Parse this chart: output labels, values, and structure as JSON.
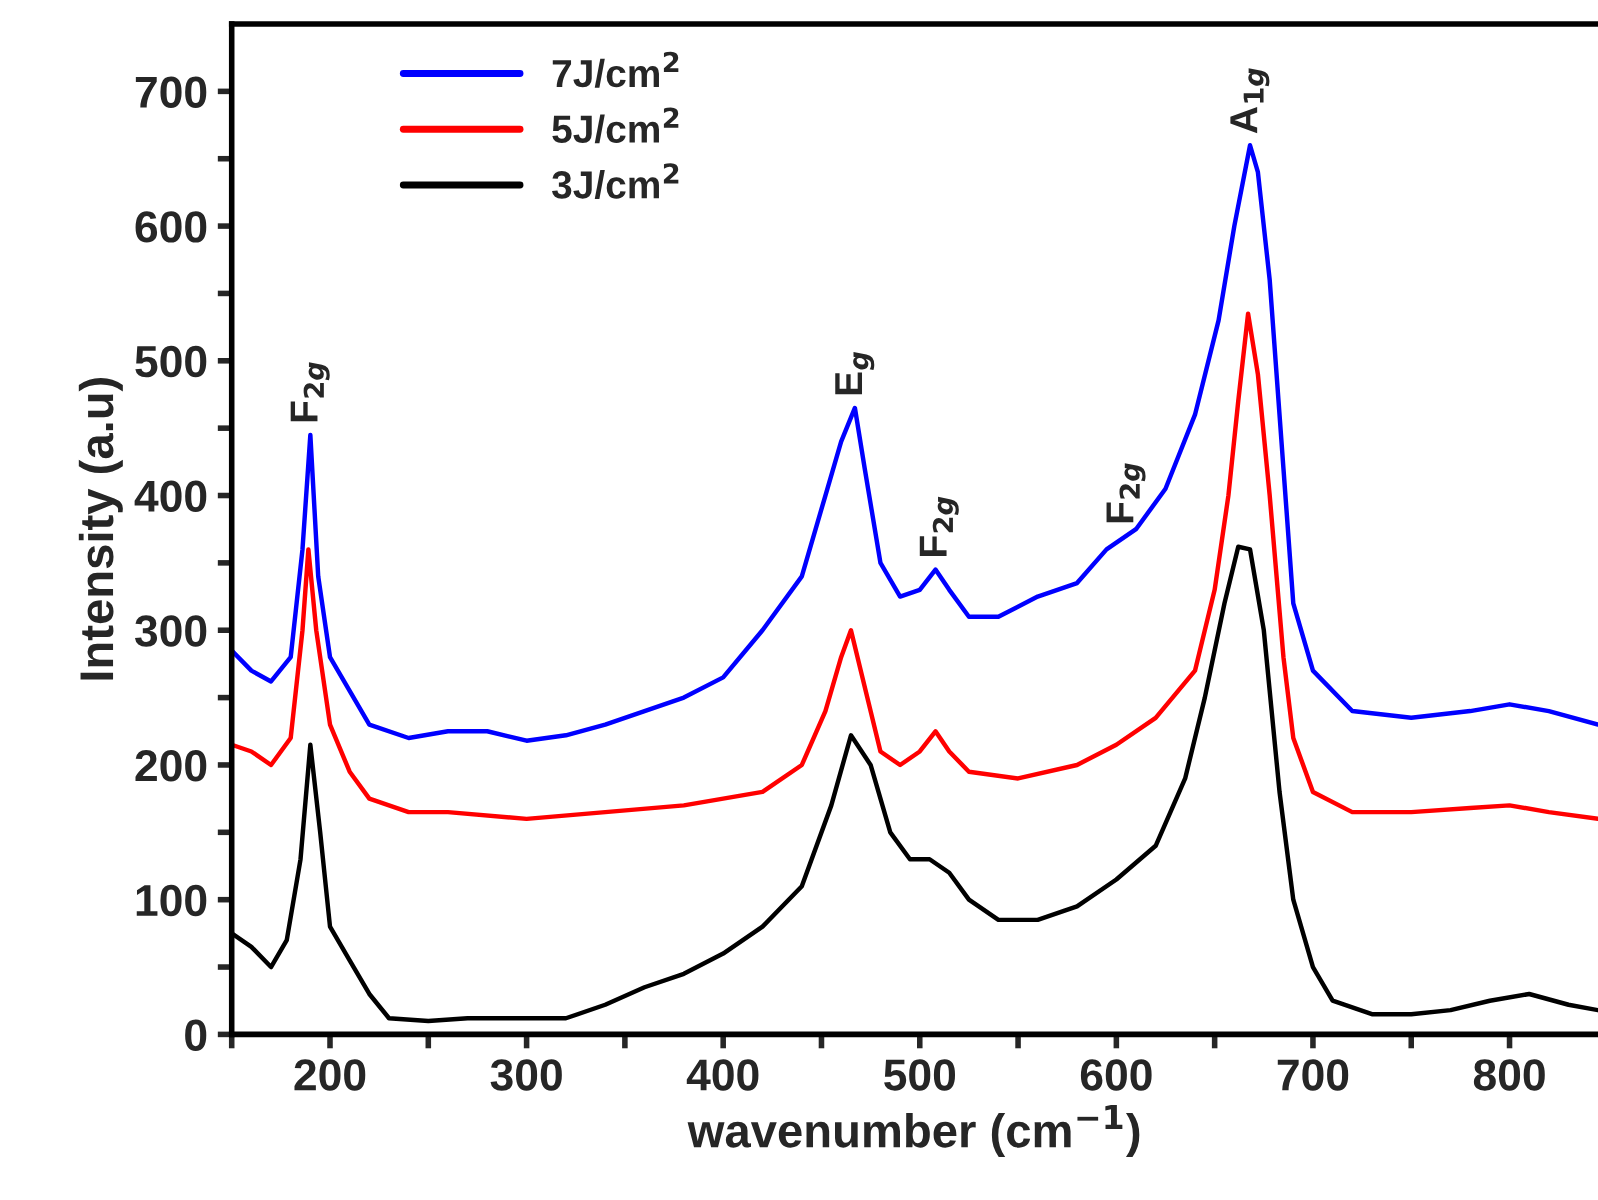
{
  "chart_data": {
    "type": "line",
    "xlabel": "wavenumber (cm$^{−1}$)",
    "ylabel": "Intensity (a.u)",
    "xlim": [
      150,
      845
    ],
    "ylim": [
      0,
      750
    ],
    "xticks": [
      {
        "value": 150,
        "label": null
      },
      200,
      {
        "value": 250,
        "label": null
      },
      300,
      {
        "value": 350,
        "label": null
      },
      400,
      {
        "value": 450,
        "label": null
      },
      500,
      {
        "value": 550,
        "label": null
      },
      600,
      {
        "value": 650,
        "label": null
      },
      700,
      {
        "value": 750,
        "label": null
      },
      800
    ],
    "yticks": [
      0,
      {
        "value": 50,
        "label": null
      },
      100,
      {
        "value": 150,
        "label": null
      },
      200,
      {
        "value": 250,
        "label": null
      },
      300,
      {
        "value": 350,
        "label": null
      },
      400,
      {
        "value": 450,
        "label": null
      },
      500,
      {
        "value": 550,
        "label": null
      },
      600,
      {
        "value": 650,
        "label": null
      },
      700
    ],
    "grid": false,
    "legend": "top left",
    "marker": "none",
    "line_style": "solid",
    "series": [
      {
        "name": "7J/cm$^{2}$",
        "color": "#0000ff",
        "x": [
          150,
          160,
          170,
          180,
          186,
          190,
          194,
          200,
          210,
          220,
          240,
          260,
          280,
          300,
          320,
          340,
          360,
          380,
          400,
          420,
          440,
          452,
          460,
          467,
          472,
          480,
          490,
          500,
          508,
          515,
          525,
          540,
          560,
          580,
          595,
          610,
          625,
          640,
          652,
          660,
          668,
          672,
          678,
          685,
          690,
          700,
          720,
          750,
          780,
          800,
          820,
          845
        ],
        "values": [
          285,
          270,
          262,
          280,
          360,
          445,
          340,
          280,
          255,
          230,
          220,
          225,
          225,
          218,
          222,
          230,
          240,
          250,
          265,
          300,
          340,
          400,
          440,
          465,
          420,
          350,
          325,
          330,
          345,
          330,
          310,
          310,
          325,
          335,
          360,
          375,
          405,
          460,
          530,
          600,
          660,
          640,
          560,
          420,
          320,
          270,
          240,
          235,
          240,
          245,
          240,
          230
        ]
      },
      {
        "name": "5J/cm$^{2}$",
        "color": "#ff0000",
        "x": [
          150,
          160,
          170,
          180,
          186,
          189,
          193,
          200,
          210,
          220,
          240,
          260,
          300,
          340,
          380,
          420,
          440,
          452,
          460,
          465,
          470,
          480,
          490,
          500,
          508,
          515,
          525,
          550,
          580,
          600,
          620,
          640,
          650,
          657,
          662,
          667,
          672,
          678,
          685,
          690,
          700,
          720,
          750,
          780,
          800,
          820,
          845
        ],
        "values": [
          215,
          210,
          200,
          220,
          300,
          360,
          300,
          230,
          195,
          175,
          165,
          165,
          160,
          165,
          170,
          180,
          200,
          240,
          280,
          300,
          270,
          210,
          200,
          210,
          225,
          210,
          195,
          190,
          200,
          215,
          235,
          270,
          330,
          400,
          470,
          535,
          490,
          400,
          280,
          220,
          180,
          165,
          165,
          168,
          170,
          165,
          160
        ]
      },
      {
        "name": "3J/cm$^{2}$",
        "color": "#000000",
        "x": [
          150,
          160,
          170,
          178,
          185,
          190,
          195,
          200,
          210,
          220,
          230,
          250,
          270,
          300,
          320,
          340,
          360,
          380,
          400,
          420,
          440,
          455,
          465,
          475,
          485,
          495,
          505,
          515,
          525,
          540,
          560,
          580,
          600,
          620,
          635,
          645,
          655,
          662,
          668,
          675,
          683,
          690,
          700,
          710,
          730,
          750,
          770,
          790,
          810,
          830,
          845
        ],
        "values": [
          75,
          65,
          50,
          70,
          130,
          215,
          150,
          80,
          55,
          30,
          12,
          10,
          12,
          12,
          12,
          22,
          35,
          45,
          60,
          80,
          110,
          170,
          222,
          200,
          150,
          130,
          130,
          120,
          100,
          85,
          85,
          95,
          115,
          140,
          190,
          250,
          320,
          362,
          360,
          300,
          180,
          100,
          50,
          25,
          15,
          15,
          18,
          25,
          30,
          22,
          18
        ]
      }
    ],
    "annotations": [
      {
        "text": "F$_{2g}$",
        "x": 190,
        "y": 445
      },
      {
        "text": "E$_{g}$",
        "x": 467,
        "y": 465
      },
      {
        "text": "F$_{2g}$",
        "x": 510,
        "y": 345
      },
      {
        "text": "F$_{2g}$",
        "x": 605,
        "y": 370
      },
      {
        "text": "A$_{1g}$",
        "x": 668,
        "y": 660
      }
    ]
  }
}
